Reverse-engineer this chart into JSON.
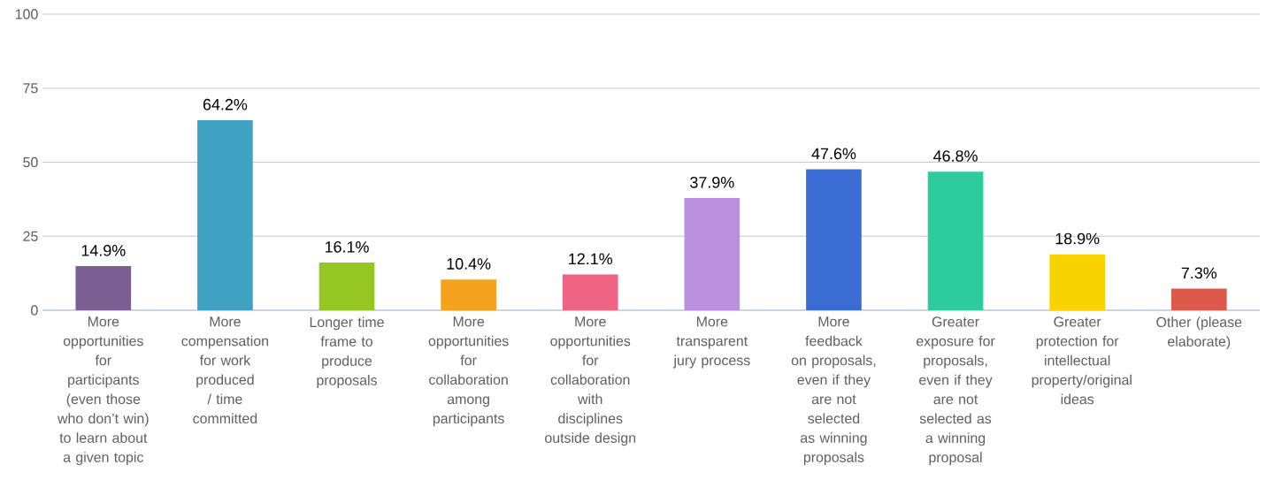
{
  "chart_data": {
    "type": "bar",
    "categories": [
      "More opportunities for participants (even those who don’t win) to learn about a given topic",
      "More compensation for work produced / time committed",
      "Longer time frame to produce proposals",
      "More opportunities for collaboration among participants",
      "More opportunities for collaboration with disciplines outside design",
      "More transparent jury process",
      "More feedback on proposals, even if they are not selected as winning proposals",
      "Greater exposure for proposals, even if they are not selected as a winning proposal",
      "Greater protection for intellectual property/original ideas",
      "Other (please elaborate)"
    ],
    "values": [
      14.9,
      64.2,
      16.1,
      10.4,
      12.1,
      37.9,
      47.6,
      46.8,
      18.9,
      7.3
    ],
    "value_labels": [
      "14.9%",
      "64.2%",
      "16.1%",
      "10.4%",
      "12.1%",
      "37.9%",
      "47.6%",
      "46.8%",
      "18.9%",
      "7.3%"
    ],
    "colors": [
      "#7b5f93",
      "#3fa2c2",
      "#95c623",
      "#f4a21d",
      "#ef6485",
      "#bb90df",
      "#3b6cd3",
      "#2ecc9c",
      "#f9d300",
      "#dd5a4a"
    ],
    "ylim": [
      0,
      100
    ],
    "yticks": [
      0,
      25,
      50,
      75,
      100
    ],
    "grid": "y"
  }
}
